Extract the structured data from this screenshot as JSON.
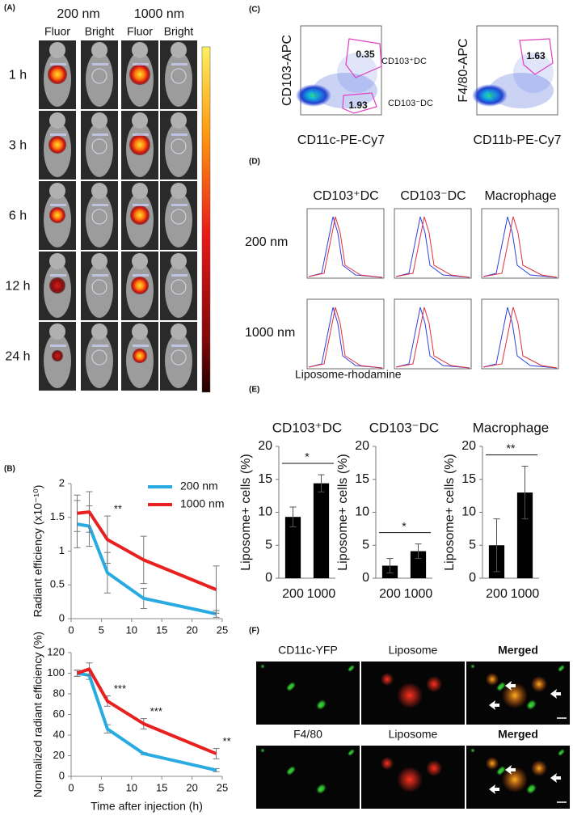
{
  "panels": {
    "A": {
      "label": "(A)",
      "groups": [
        "200 nm",
        "1000 nm"
      ],
      "columns": [
        "Fluor",
        "Bright",
        "Fluor",
        "Bright"
      ],
      "rows": [
        "1 h",
        "3 h",
        "6 h",
        "12 h",
        "24 h"
      ]
    },
    "B": {
      "label": "(B)"
    },
    "C": {
      "label": "(C)",
      "plots": [
        {
          "ylabel": "CD103-APC",
          "xlabel": "CD11c-PE-Cy7",
          "gates": [
            {
              "value": 0.35,
              "name": "CD103⁺DC"
            },
            {
              "value": 1.93,
              "name": "CD103⁻DC"
            }
          ]
        },
        {
          "ylabel": "F4/80-APC",
          "xlabel": "CD11b-PE-Cy7",
          "gates": [
            {
              "value": 1.63
            }
          ]
        }
      ]
    },
    "D": {
      "label": "(D)",
      "columns": [
        "CD103⁺DC",
        "CD103⁻DC",
        "Macrophage"
      ],
      "rows": [
        "200 nm",
        "1000 nm"
      ],
      "xlabel": "Liposome-rhodamine"
    },
    "E": {
      "label": "(E)"
    },
    "F": {
      "label": "(F)",
      "rows": [
        [
          "CD11c-YFP",
          "Liposome",
          "Merged"
        ],
        [
          "F4/80",
          "Liposome",
          "Merged"
        ]
      ]
    }
  },
  "chart_data": [
    {
      "type": "line",
      "ylabel": "Radiant efficiency (x10⁻¹⁰)",
      "x": [
        1,
        3,
        6,
        12,
        24
      ],
      "series": [
        {
          "name": "200 nm",
          "color": "#29abe2",
          "values": [
            1.4,
            1.37,
            0.68,
            0.3,
            0.07
          ],
          "errors": [
            0.35,
            0.3,
            0.3,
            0.15,
            0.05
          ]
        },
        {
          "name": "1000 nm",
          "color": "#e8201f",
          "values": [
            1.56,
            1.58,
            1.17,
            0.87,
            0.43
          ],
          "errors": [
            0.27,
            0.3,
            0.35,
            0.35,
            0.35
          ]
        }
      ],
      "annotations": [
        {
          "text": "**",
          "x": 6
        }
      ],
      "xlim": [
        0,
        25
      ],
      "xticks": [
        0,
        5,
        10,
        15,
        20,
        25
      ],
      "ylim": [
        0,
        2
      ],
      "yticks": [
        0,
        0.5,
        1,
        1.5,
        2
      ],
      "legend": "upper right"
    },
    {
      "type": "line",
      "ylabel": "Normalized radiant efficiency (%)",
      "xlabel": "Time after injection (h)",
      "x": [
        1,
        3,
        6,
        12,
        24
      ],
      "series": [
        {
          "name": "200 nm",
          "color": "#29abe2",
          "values": [
            100,
            98,
            46,
            22,
            6
          ],
          "errors": [
            3,
            4,
            4,
            1,
            1.5
          ]
        },
        {
          "name": "1000 nm",
          "color": "#e8201f",
          "values": [
            100,
            104,
            73,
            51,
            22
          ],
          "errors": [
            3,
            6,
            5,
            5,
            5
          ]
        }
      ],
      "annotations": [
        {
          "text": "***",
          "x": 6
        },
        {
          "text": "***",
          "x": 12
        },
        {
          "text": "**",
          "x": 24
        }
      ],
      "xlim": [
        0,
        25
      ],
      "xticks": [
        0,
        5,
        10,
        15,
        20,
        25
      ],
      "ylim": [
        0,
        120
      ],
      "yticks": [
        0,
        20,
        40,
        60,
        80,
        100,
        120
      ]
    },
    {
      "type": "bar",
      "title": "CD103⁺DC",
      "ylabel": "Liposome+ cells (%)",
      "categories": [
        "200",
        "1000"
      ],
      "values": [
        9.3,
        14.4
      ],
      "errors": [
        1.5,
        1.3
      ],
      "color": "#000000",
      "significance": "*",
      "ylim": [
        0,
        20
      ],
      "yticks": [
        0,
        5,
        10,
        15,
        20
      ]
    },
    {
      "type": "bar",
      "title": "CD103⁻DC",
      "ylabel": "Liposome+ cells (%)",
      "categories": [
        "200",
        "1000"
      ],
      "values": [
        1.9,
        4.1
      ],
      "errors": [
        1.1,
        1.1
      ],
      "color": "#000000",
      "significance": "*",
      "ylim": [
        0,
        20
      ],
      "yticks": [
        0,
        5,
        10,
        15,
        20
      ]
    },
    {
      "type": "bar",
      "title": "Macrophage",
      "ylabel": "Liposome+ cells (%)",
      "categories": [
        "200",
        "1000"
      ],
      "values": [
        5,
        13
      ],
      "errors": [
        4,
        4
      ],
      "color": "#000000",
      "significance": "**",
      "ylim": [
        0,
        20
      ],
      "yticks": [
        0,
        5,
        10,
        15,
        20
      ]
    }
  ]
}
